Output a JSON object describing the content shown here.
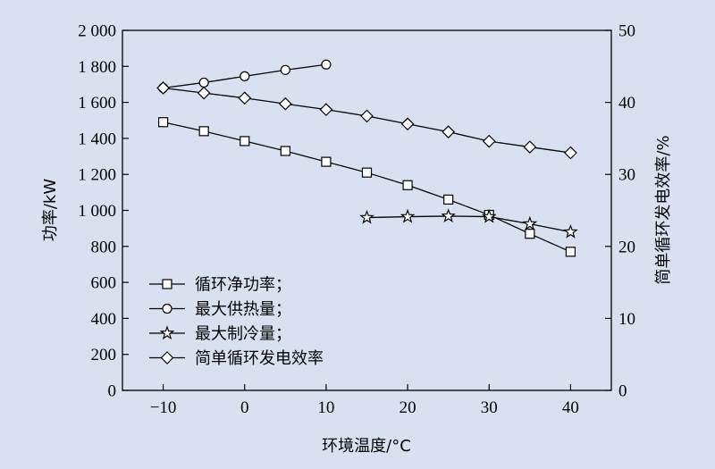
{
  "chart_data": {
    "type": "line",
    "xlabel": "环境温度/°C",
    "ylabel": "功率/kW",
    "y2label": "简单循环发电效率/%",
    "xlim": [
      -15,
      45
    ],
    "ylim": [
      0,
      2000
    ],
    "y2lim": [
      0,
      50
    ],
    "x_ticks": [
      -10,
      0,
      10,
      20,
      30,
      40
    ],
    "x_tick_labels": [
      "−10",
      "0",
      "10",
      "20",
      "30",
      "40"
    ],
    "y_ticks": [
      0,
      200,
      400,
      600,
      800,
      1000,
      1200,
      1400,
      1600,
      1800,
      2000
    ],
    "y_tick_labels": [
      "0",
      "200",
      "400",
      "600",
      "800",
      "1 000",
      "1 200",
      "1 400",
      "1 600",
      "1 800",
      "2 000"
    ],
    "y2_ticks": [
      0,
      10,
      20,
      30,
      40,
      50
    ],
    "y2_tick_labels": [
      "0",
      "10",
      "20",
      "30",
      "40",
      "50"
    ],
    "grid": false,
    "legend_position": "bottom-left",
    "series": [
      {
        "name": "循环净功率；",
        "marker": "square",
        "axis": "left",
        "x": [
          -10,
          -5,
          0,
          5,
          10,
          15,
          20,
          25,
          30,
          35,
          40
        ],
        "values": [
          1490,
          1440,
          1385,
          1330,
          1270,
          1210,
          1140,
          1060,
          975,
          870,
          770
        ]
      },
      {
        "name": "最大供热量；",
        "marker": "circle",
        "axis": "left",
        "x": [
          -10,
          -5,
          0,
          5,
          10
        ],
        "values": [
          1680,
          1710,
          1745,
          1780,
          1810
        ]
      },
      {
        "name": "最大制冷量；",
        "marker": "star",
        "axis": "left",
        "x": [
          15,
          20,
          25,
          30,
          35,
          40
        ],
        "values": [
          960,
          965,
          968,
          965,
          925,
          880
        ]
      },
      {
        "name": "简单循环发电效率",
        "marker": "diamond",
        "axis": "right",
        "x": [
          -10,
          -5,
          0,
          5,
          10,
          15,
          20,
          25,
          30,
          35,
          40
        ],
        "values": [
          42.0,
          41.3,
          40.6,
          39.8,
          39.0,
          38.1,
          37.0,
          35.9,
          34.6,
          33.8,
          33.0
        ]
      }
    ]
  }
}
